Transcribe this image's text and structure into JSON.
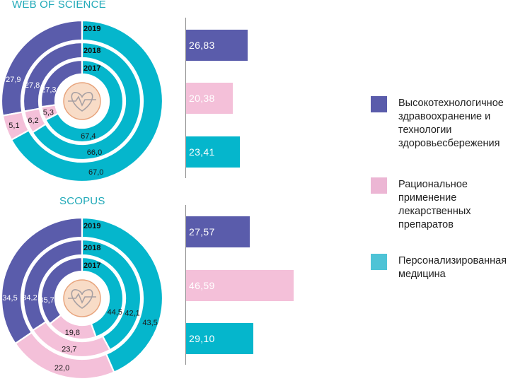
{
  "colors": {
    "hightech": "#5a5cab",
    "rational": "#f4c0d9",
    "personal": "#05b6cc",
    "year_band": "#ffffff",
    "icon_fill": "#f8dcc7",
    "icon_stroke": "#e8a57e"
  },
  "legend": [
    {
      "key": "hightech",
      "label": "Высокотехнологичное здравоохранение и технологии здоровьесбережения",
      "swatch": "#5a5cab"
    },
    {
      "key": "rational",
      "label": "Рациональное применение лекарственных препаратов",
      "swatch": "#ecb6d4"
    },
    {
      "key": "personal",
      "label": "Персонализированная медицина",
      "swatch": "#4ec3d6"
    }
  ],
  "chart_data": [
    {
      "type": "donut",
      "title": "WEB OF SCIENCE",
      "rings": [
        "2017",
        "2018",
        "2019"
      ],
      "series": [
        {
          "name": "Высокотехнологичное здравоохранение и технологии здоровьесбережения",
          "key": "hightech",
          "values": [
            27.3,
            27.8,
            27.9
          ],
          "labels": [
            "27,3",
            "27,8",
            "27,9"
          ]
        },
        {
          "name": "Рациональное применение лекарственных препаратов",
          "key": "rational",
          "values": [
            5.3,
            6.2,
            5.1
          ],
          "labels": [
            "5,3",
            "6,2",
            "5,1"
          ]
        },
        {
          "name": "Персонализированная медицина",
          "key": "personal",
          "values": [
            67.4,
            66.0,
            67.0
          ],
          "labels": [
            "67,4",
            "66,0",
            "67,0"
          ]
        }
      ]
    },
    {
      "type": "bar",
      "title": "WEB OF SCIENCE",
      "categories": [
        "Высокотехнологичное здравоохранение и технологии здоровьесбережения",
        "Рациональное применение лекарственных препаратов",
        "Персонализированная медицина"
      ],
      "keys": [
        "hightech",
        "rational",
        "personal"
      ],
      "values": [
        26.83,
        20.38,
        23.41
      ],
      "labels": [
        "26,83",
        "20,38",
        "23,41"
      ],
      "xlim": [
        0,
        47
      ]
    },
    {
      "type": "donut",
      "title": "SCOPUS",
      "rings": [
        "2017",
        "2018",
        "2019"
      ],
      "series": [
        {
          "name": "Высокотехнологичное здравоохранение и технологии здоровьесбережения",
          "key": "hightech",
          "values": [
            35.7,
            34.2,
            34.5
          ],
          "labels": [
            "35,7",
            "34,2",
            "34,5"
          ]
        },
        {
          "name": "Рациональное применение лекарственных препаратов",
          "key": "rational",
          "values": [
            19.8,
            23.7,
            22.0
          ],
          "labels": [
            "19,8",
            "23,7",
            "22,0"
          ]
        },
        {
          "name": "Персонализированная медицина",
          "key": "personal",
          "values": [
            44.5,
            42.1,
            43.5
          ],
          "labels": [
            "44,5",
            "42,1",
            "43,5"
          ]
        }
      ]
    },
    {
      "type": "bar",
      "title": "SCOPUS",
      "categories": [
        "Высокотехнологичное здравоохранение и технологии здоровьесбережения",
        "Рациональное применение лекарственных препаратов",
        "Персонализированная медицина"
      ],
      "keys": [
        "hightech",
        "rational",
        "personal"
      ],
      "values": [
        27.57,
        46.59,
        29.1
      ],
      "labels": [
        "27,57",
        "46,59",
        "29,10"
      ],
      "xlim": [
        0,
        47
      ]
    }
  ]
}
